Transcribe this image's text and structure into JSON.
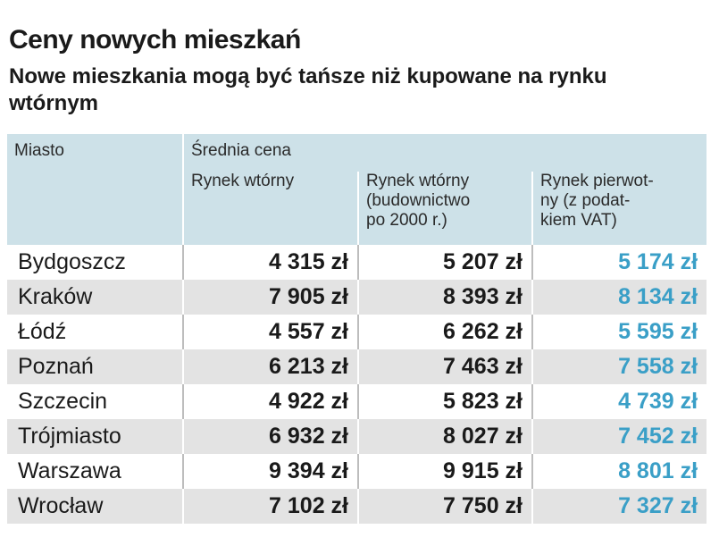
{
  "header": {
    "title": "Ceny nowych mieszkań",
    "subtitle": "Nowe mieszkania mogą być tańsze niż kupowane na rynku wtórnym"
  },
  "colors": {
    "header_bg": "#cde1e8",
    "row_alt_bg": "#e3e3e3",
    "primary_market_text": "#3a9fc7",
    "text": "#1a1a1a"
  },
  "chart_data": {
    "type": "table",
    "title": "Ceny nowych mieszkań",
    "subtitle": "Nowe mieszkania mogą być tańsze niż kupowane na rynku wtórnym",
    "group_header": "Średnia cena",
    "columns": [
      "Miasto",
      "Rynek wtórny",
      "Rynek wtórny (budownictwo po 2000 r.)",
      "Rynek pierwot-ny (z podat-kiem VAT)"
    ],
    "column_lines": [
      [
        "Miasto"
      ],
      [
        "Rynek wtórny"
      ],
      [
        "Rynek wtórny",
        "(budownictwo",
        "po 2000 r.)"
      ],
      [
        "Rynek pierwot-",
        "ny (z podat-",
        "kiem VAT)"
      ]
    ],
    "rows": [
      [
        "Bydgoszcz",
        "4 315 zł",
        "5 207 zł",
        "5 174 zł"
      ],
      [
        "Kraków",
        "7 905 zł",
        "8 393 zł",
        "8 134 zł"
      ],
      [
        "Łódź",
        "4 557 zł",
        "6 262 zł",
        "5 595 zł"
      ],
      [
        "Poznań",
        "6 213 zł",
        "7 463 zł",
        "7 558 zł"
      ],
      [
        "Szczecin",
        "4 922 zł",
        "5 823 zł",
        "4 739 zł"
      ],
      [
        "Trójmiasto",
        "6 932 zł",
        "8 027 zł",
        "7 452 zł"
      ],
      [
        "Warszawa",
        "9 394 zł",
        "9 915 zł",
        "8 801 zł"
      ],
      [
        "Wrocław",
        "7 102 zł",
        "7 750 zł",
        "7 327 zł"
      ]
    ]
  }
}
